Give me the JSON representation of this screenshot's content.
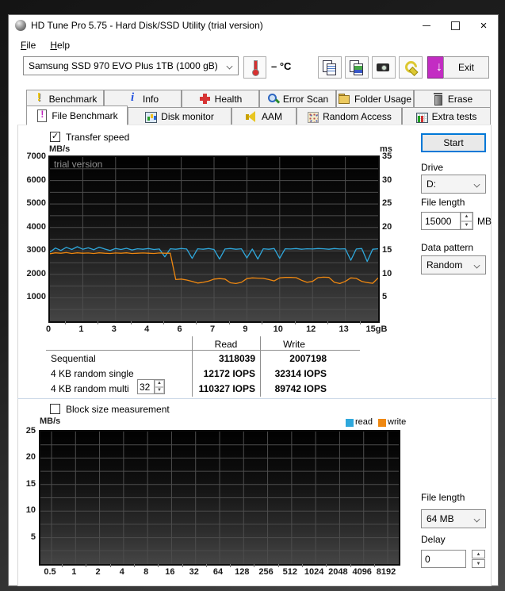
{
  "window": {
    "title": "HD Tune Pro 5.75 - Hard Disk/SSD Utility (trial version)",
    "menu": {
      "file": "File",
      "help": "Help"
    }
  },
  "toolbar": {
    "device_selector_value": "Samsung SSD 970 EVO Plus 1TB (1000 gB)",
    "temperature_value": "–",
    "temperature_unit": "°C",
    "exit_label": "Exit"
  },
  "tabs_row1": [
    {
      "label": "Benchmark",
      "icon": "benchmark"
    },
    {
      "label": "Info",
      "icon": "info"
    },
    {
      "label": "Health",
      "icon": "health"
    },
    {
      "label": "Error Scan",
      "icon": "errorscan"
    },
    {
      "label": "Folder Usage",
      "icon": "folder"
    },
    {
      "label": "Erase",
      "icon": "erase"
    }
  ],
  "tabs_row2": [
    {
      "label": "File Benchmark",
      "icon": "filebench",
      "active": true
    },
    {
      "label": "Disk monitor",
      "icon": "diskmon"
    },
    {
      "label": "AAM",
      "icon": "aam"
    },
    {
      "label": "Random Access",
      "icon": "random"
    },
    {
      "label": "Extra tests",
      "icon": "extratests"
    }
  ],
  "file_benchmark": {
    "transfer_speed_label": "Transfer speed",
    "transfer_speed_checked": "✓",
    "start_label": "Start",
    "drive_label": "Drive",
    "drive_value": "D:",
    "file_length_label": "File length",
    "file_length_value": "15000",
    "file_length_unit": "MB",
    "data_pattern_label": "Data pattern",
    "data_pattern_value": "Random",
    "block_size_label": "Block size measurement",
    "legend_read": "read",
    "legend_write": "write",
    "file_length2_label": "File length",
    "file_length2_value": "64 MB",
    "delay_label": "Delay",
    "delay_value": "0"
  },
  "results_table": {
    "col_headers": {
      "read": "Read",
      "write": "Write"
    },
    "rows": [
      {
        "label": "Sequential",
        "read": "3118039",
        "write": "2007198"
      },
      {
        "label": "4 KB random single",
        "read": "12172 IOPS",
        "write": "32314 IOPS"
      },
      {
        "label": "4 KB random multi",
        "queue_depth": "32",
        "read": "110327 IOPS",
        "write": "89742 IOPS"
      }
    ]
  },
  "colors": {
    "read": "#2fa8dc",
    "write": "#ef8811",
    "accent": "#0078d7",
    "download_button": "#c32cc3",
    "grid": "#4d4d4d"
  },
  "chart_data": [
    {
      "type": "line",
      "watermark": "trial version",
      "ylabel": "MB/s",
      "y2label": "ms",
      "xlim": [
        0,
        15
      ],
      "ylim": [
        0,
        7000
      ],
      "y2lim": [
        0,
        35
      ],
      "y_grid_step": 500,
      "x_grid_count": 10,
      "y_tick_labels": [
        "7000",
        "6000",
        "5000",
        "4000",
        "3000",
        "2000",
        "1000"
      ],
      "y_tick_values": [
        7000,
        6000,
        5000,
        4000,
        3000,
        2000,
        1000
      ],
      "y2_tick_labels": [
        "35",
        "30",
        "25",
        "20",
        "15",
        "10",
        "5"
      ],
      "y2_tick_values": [
        35,
        30,
        25,
        20,
        15,
        10,
        5
      ],
      "x_tick_labels": [
        "0",
        "1",
        "3",
        "4",
        "6",
        "7",
        "9",
        "10",
        "12",
        "13",
        "15gB"
      ],
      "x_tick_values": [
        0,
        1.5,
        3,
        4.5,
        6,
        7.5,
        9,
        10.5,
        12,
        13.5,
        15
      ],
      "series": [
        {
          "name": "read",
          "x_step": 0.25,
          "values": [
            2950,
            3120,
            3020,
            3150,
            3060,
            3180,
            3070,
            3130,
            3050,
            3160,
            3080,
            3020,
            3100,
            3060,
            3110,
            3040,
            3090,
            3070,
            3100,
            3060,
            3080,
            2750,
            3090,
            3070,
            3100,
            3080,
            2680,
            3090,
            3070,
            3100,
            3060,
            2650,
            3080,
            3100,
            3070,
            3090,
            2700,
            3080,
            2650,
            3090,
            3070,
            3100,
            2680,
            3090,
            3080,
            3100,
            3070,
            3090,
            3080,
            3100,
            3090,
            3070,
            3100,
            3080,
            3090,
            2600,
            3080,
            3100,
            2550,
            3070,
            3090
          ]
        },
        {
          "name": "write",
          "x_step": 0.25,
          "values": [
            2880,
            2920,
            2900,
            2930,
            2890,
            2920,
            2900,
            2910,
            2890,
            2920,
            2900,
            2890,
            2910,
            2900,
            2920,
            2890,
            2900,
            2910,
            2900,
            2890,
            2910,
            2900,
            2900,
            1780,
            1800,
            1760,
            1700,
            1630,
            1660,
            1710,
            1800,
            1820,
            1800,
            1640,
            1610,
            1660,
            1820,
            1850,
            1840,
            1830,
            1780,
            1720,
            1850,
            1870,
            1870,
            1860,
            1750,
            1660,
            1700,
            1860,
            1880,
            1870,
            1660,
            1610,
            1700,
            1850,
            1830,
            1700,
            1650,
            1620,
            1850
          ]
        }
      ]
    },
    {
      "type": "line",
      "ylabel": "MB/s",
      "ylim": [
        0,
        25
      ],
      "y_grid_step": 2.5,
      "y_tick_labels": [
        "25",
        "20",
        "15",
        "10",
        "5"
      ],
      "y_tick_values": [
        25,
        20,
        15,
        10,
        5
      ],
      "x_tick_labels": [
        "0.5",
        "1",
        "2",
        "4",
        "8",
        "16",
        "32",
        "64",
        "128",
        "256",
        "512",
        "1024",
        "2048",
        "4096",
        "8192"
      ],
      "series": []
    }
  ]
}
